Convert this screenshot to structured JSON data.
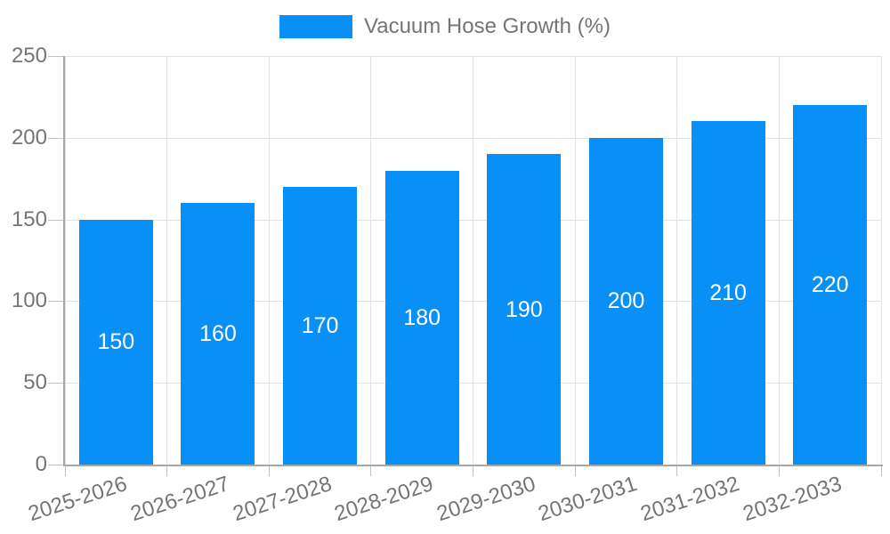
{
  "legend": {
    "label": "Vacuum Hose Growth (%)"
  },
  "chart_data": {
    "type": "bar",
    "title": "",
    "xlabel": "",
    "ylabel": "",
    "categories": [
      "2025-2026",
      "2026-2027",
      "2027-2028",
      "2028-2029",
      "2029-2030",
      "2030-2031",
      "2031-2032",
      "2032-2033"
    ],
    "series": [
      {
        "name": "Vacuum Hose Growth (%)",
        "values": [
          150,
          160,
          170,
          180,
          190,
          200,
          210,
          220
        ]
      }
    ],
    "value_labels": [
      "150",
      "160",
      "170",
      "180",
      "190",
      "200",
      "210",
      "220"
    ],
    "ylim": [
      0,
      250
    ],
    "yticks": [
      0,
      50,
      100,
      150,
      200,
      250
    ],
    "grid": true,
    "legend_position": "top-center",
    "value_label_placement": "inside-center"
  },
  "colors": {
    "bar": "#0990f6",
    "grid": "#e3e3e3",
    "axis": "#a6a6a6",
    "tick": "#c2c2c2",
    "text": "#757575",
    "value_text": "#ffffff",
    "background": "#ffffff"
  }
}
